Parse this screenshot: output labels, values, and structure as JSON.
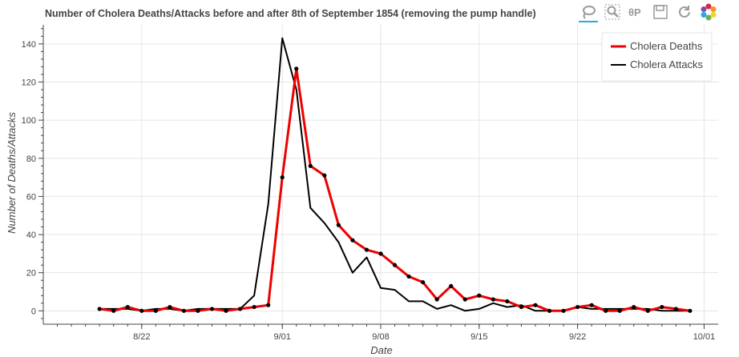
{
  "toolbar": {
    "tools": [
      {
        "name": "lasso-select-icon",
        "active": true
      },
      {
        "name": "box-zoom-icon",
        "active": false
      },
      {
        "name": "pan-icon",
        "active": false
      },
      {
        "name": "save-icon",
        "active": false
      },
      {
        "name": "reset-icon",
        "active": false
      },
      {
        "name": "bokeh-logo-icon",
        "active": false
      }
    ]
  },
  "chart_data": {
    "type": "line",
    "title": "Number of Cholera Deaths/Attacks before and after 8th of September 1854 (removing the pump handle)",
    "xlabel": "Date",
    "ylabel": "Number of Deaths/Attacks",
    "x_range": [
      "1854-08-15",
      "1854-10-02"
    ],
    "x_ticks": [
      {
        "date": "1854-08-22",
        "label": "8/22"
      },
      {
        "date": "1854-09-01",
        "label": "9/01"
      },
      {
        "date": "1854-09-08",
        "label": "9/08"
      },
      {
        "date": "1854-09-15",
        "label": "9/15"
      },
      {
        "date": "1854-09-22",
        "label": "9/22"
      },
      {
        "date": "1854-10-01",
        "label": "10/01"
      }
    ],
    "ylim": [
      -7,
      150
    ],
    "y_ticks": [
      0,
      20,
      40,
      60,
      80,
      100,
      120,
      140
    ],
    "grid": true,
    "legend_position": "top-right",
    "colors": {
      "deaths": "#ee0000",
      "attacks": "#000000",
      "grid": "#e5e5e5",
      "axis": "#444444",
      "active_tool": "#26aae1"
    },
    "series": [
      {
        "name": "Cholera Deaths",
        "color": "#ee0000",
        "x": [
          "1854-08-19",
          "1854-08-20",
          "1854-08-21",
          "1854-08-22",
          "1854-08-23",
          "1854-08-24",
          "1854-08-25",
          "1854-08-26",
          "1854-08-27",
          "1854-08-28",
          "1854-08-29",
          "1854-08-30",
          "1854-08-31",
          "1854-09-01",
          "1854-09-02",
          "1854-09-03",
          "1854-09-04",
          "1854-09-05",
          "1854-09-06",
          "1854-09-07",
          "1854-09-08",
          "1854-09-09",
          "1854-09-10",
          "1854-09-11",
          "1854-09-12",
          "1854-09-13",
          "1854-09-14",
          "1854-09-15",
          "1854-09-16",
          "1854-09-17",
          "1854-09-18",
          "1854-09-19",
          "1854-09-20",
          "1854-09-21",
          "1854-09-22",
          "1854-09-23",
          "1854-09-24",
          "1854-09-25",
          "1854-09-26",
          "1854-09-27",
          "1854-09-28",
          "1854-09-29",
          "1854-09-30"
        ],
        "values": [
          1,
          0,
          2,
          0,
          0,
          2,
          0,
          0,
          1,
          0,
          1,
          2,
          3,
          70,
          127,
          76,
          71,
          45,
          37,
          32,
          30,
          24,
          18,
          15,
          6,
          13,
          6,
          8,
          6,
          5,
          2,
          3,
          0,
          0,
          2,
          3,
          0,
          0,
          2,
          0,
          2,
          1,
          0
        ]
      },
      {
        "name": "Cholera Attacks",
        "color": "#000000",
        "x": [
          "1854-08-19",
          "1854-08-20",
          "1854-08-21",
          "1854-08-22",
          "1854-08-23",
          "1854-08-24",
          "1854-08-25",
          "1854-08-26",
          "1854-08-27",
          "1854-08-28",
          "1854-08-29",
          "1854-08-30",
          "1854-08-31",
          "1854-09-01",
          "1854-09-02",
          "1854-09-03",
          "1854-09-04",
          "1854-09-05",
          "1854-09-06",
          "1854-09-07",
          "1854-09-08",
          "1854-09-09",
          "1854-09-10",
          "1854-09-11",
          "1854-09-12",
          "1854-09-13",
          "1854-09-14",
          "1854-09-15",
          "1854-09-16",
          "1854-09-17",
          "1854-09-18",
          "1854-09-19",
          "1854-09-20",
          "1854-09-21",
          "1854-09-22",
          "1854-09-23",
          "1854-09-24",
          "1854-09-25",
          "1854-09-26",
          "1854-09-27",
          "1854-09-28",
          "1854-09-29",
          "1854-09-30"
        ],
        "values": [
          1,
          1,
          1,
          0,
          1,
          1,
          0,
          1,
          1,
          1,
          1,
          8,
          56,
          143,
          116,
          54,
          46,
          36,
          20,
          28,
          12,
          11,
          5,
          5,
          1,
          3,
          0,
          1,
          4,
          2,
          3,
          0,
          0,
          0,
          2,
          1,
          1,
          1,
          1,
          1,
          0,
          0,
          0
        ]
      }
    ]
  }
}
